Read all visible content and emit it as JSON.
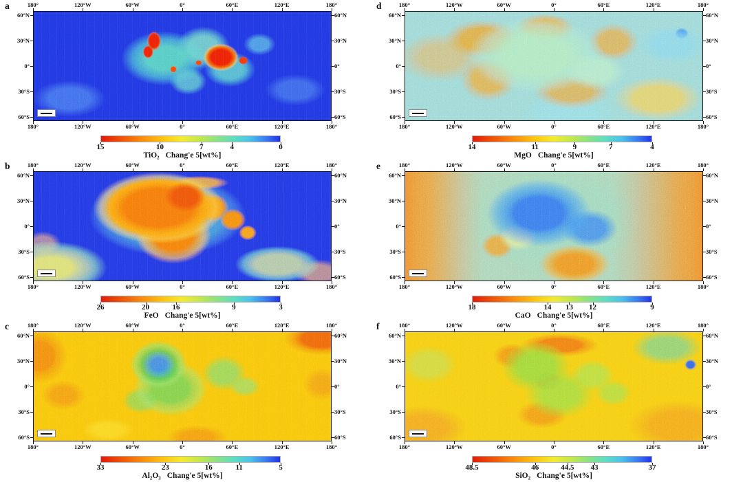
{
  "figure": {
    "axes": {
      "lon_labels": [
        "180°",
        "120°W",
        "60°W",
        "0°",
        "60°E",
        "120°E",
        "180°"
      ],
      "lat_labels": [
        "60°N",
        "30°N",
        "0°",
        "30°S",
        "60°S"
      ]
    },
    "colorbar_colors": [
      "#e21a0a",
      "#ef5207",
      "#fa8d0e",
      "#fec613",
      "#f4ea2f",
      "#c3e84c",
      "#8ae284",
      "#5fdec0",
      "#4cc3ea",
      "#3a7df2",
      "#2433e8"
    ],
    "panels": [
      {
        "letter": "a",
        "map_id": "tio2",
        "colorbar": {
          "formula": "TiO₂",
          "rest": "Chang'e 5[wt%]",
          "ticks": [
            {
              "v": "15",
              "pos": 0.0
            },
            {
              "v": "10",
              "pos": 0.33
            },
            {
              "v": "7",
              "pos": 0.56
            },
            {
              "v": "4",
              "pos": 0.73
            },
            {
              "v": "0",
              "pos": 1.0
            }
          ]
        }
      },
      {
        "letter": "d",
        "map_id": "mgo",
        "colorbar": {
          "formula": "MgO",
          "rest": "Chang'e 5[wt%]",
          "ticks": [
            {
              "v": "14",
              "pos": 0.0
            },
            {
              "v": "11",
              "pos": 0.35
            },
            {
              "v": "9",
              "pos": 0.57
            },
            {
              "v": "7",
              "pos": 0.77
            },
            {
              "v": "4",
              "pos": 1.0
            }
          ]
        }
      },
      {
        "letter": "b",
        "map_id": "feo",
        "colorbar": {
          "formula": "FeO",
          "rest": "Chang'e 5[wt%]",
          "ticks": [
            {
              "v": "26",
              "pos": 0.0
            },
            {
              "v": "20",
              "pos": 0.25
            },
            {
              "v": "16",
              "pos": 0.42
            },
            {
              "v": "9",
              "pos": 0.74
            },
            {
              "v": "3",
              "pos": 1.0
            }
          ]
        }
      },
      {
        "letter": "e",
        "map_id": "cao",
        "colorbar": {
          "formula": "CaO",
          "rest": "Chang'e 5[wt%]",
          "ticks": [
            {
              "v": "18",
              "pos": 0.0
            },
            {
              "v": "14",
              "pos": 0.42
            },
            {
              "v": "13",
              "pos": 0.54
            },
            {
              "v": "12",
              "pos": 0.67
            },
            {
              "v": "9",
              "pos": 1.0
            }
          ]
        }
      },
      {
        "letter": "c",
        "map_id": "al2o3",
        "colorbar": {
          "formula": "Al₂O₃",
          "rest": "Chang'e 5[wt%]",
          "ticks": [
            {
              "v": "33",
              "pos": 0.0
            },
            {
              "v": "23",
              "pos": 0.36
            },
            {
              "v": "16",
              "pos": 0.6
            },
            {
              "v": "11",
              "pos": 0.77
            },
            {
              "v": "5",
              "pos": 1.0
            }
          ]
        }
      },
      {
        "letter": "f",
        "map_id": "sio2",
        "colorbar": {
          "formula": "SiO₂",
          "rest": "Chang'e 5[wt%]",
          "ticks": [
            {
              "v": "48.5",
              "pos": 0.0
            },
            {
              "v": "46",
              "pos": 0.35
            },
            {
              "v": "44.5",
              "pos": 0.53
            },
            {
              "v": "43",
              "pos": 0.68
            },
            {
              "v": "37",
              "pos": 1.0
            }
          ]
        }
      }
    ]
  },
  "chart_data": [
    {
      "type": "heatmap",
      "panel": "a",
      "species": "TiO2",
      "title": "TiO₂ Chang'e 5[wt%]",
      "projection": "equirectangular global lunar map",
      "x_ticks": [
        "180°",
        "120°W",
        "60°W",
        "0°",
        "60°E",
        "120°E",
        "180°"
      ],
      "y_ticks": [
        "60°N",
        "30°N",
        "0°",
        "30°S",
        "60°S"
      ],
      "value_range": [
        0,
        15
      ],
      "colorbar_tick_values": [
        15,
        10,
        7,
        4,
        0
      ],
      "colorbar_tick_positions": [
        0,
        0.33,
        0.56,
        0.73,
        1.0
      ],
      "high_color": "#e21a0a",
      "low_color": "#2433e8",
      "pattern": "Mostly low TiO2 (deep blue) highlands; moderate teal-green values over nearside maria; highest TiO2 (red) patches in Oceanus Procellarum (~60°W, 20-30°N) and Mare Tranquillitatis (~30°E, 0-15°N)."
    },
    {
      "type": "heatmap",
      "panel": "b",
      "species": "FeO",
      "title": "FeO Chang'e 5[wt%]",
      "projection": "equirectangular global lunar map",
      "x_ticks": [
        "180°",
        "120°W",
        "60°W",
        "0°",
        "60°E",
        "120°E",
        "180°"
      ],
      "y_ticks": [
        "60°N",
        "30°N",
        "0°",
        "30°S",
        "60°S"
      ],
      "value_range": [
        3,
        26
      ],
      "colorbar_tick_values": [
        26,
        20,
        16,
        9,
        3
      ],
      "colorbar_tick_positions": [
        0,
        0.25,
        0.42,
        0.74,
        1.0
      ],
      "high_color": "#e21a0a",
      "low_color": "#2433e8",
      "pattern": "High FeO (orange-red) over nearside maria (Procellarum, Imbrium, Serenitatis, Tranquillitatis, Crisium); low FeO (blue) feldspathic highlands; elevated yellow-green values in South Pole-Aitken region (bottom-left and bottom-right)."
    },
    {
      "type": "heatmap",
      "panel": "c",
      "species": "Al2O3",
      "title": "Al₂O₃ Chang'e 5[wt%]",
      "projection": "equirectangular global lunar map",
      "x_ticks": [
        "180°",
        "120°W",
        "60°W",
        "0°",
        "60°E",
        "120°E",
        "180°"
      ],
      "y_ticks": [
        "60°N",
        "30°N",
        "0°",
        "30°S",
        "60°S"
      ],
      "value_range": [
        5,
        33
      ],
      "colorbar_tick_values": [
        33,
        23,
        16,
        11,
        5
      ],
      "colorbar_tick_positions": [
        0,
        0.36,
        0.6,
        0.77,
        1.0
      ],
      "high_color": "#e21a0a",
      "low_color": "#2433e8",
      "pattern": "High Al2O3 (orange-yellow) highlands with reddish patches near crater rays and basin rims; low Al2O3 (green to blue) over nearside maria, lowest (blue) in Mare Imbrium/Procellarum."
    },
    {
      "type": "heatmap",
      "panel": "d",
      "species": "MgO",
      "title": "MgO Chang'e 5[wt%]",
      "projection": "equirectangular global lunar map",
      "x_ticks": [
        "180°",
        "120°W",
        "60°W",
        "0°",
        "60°E",
        "120°E",
        "180°"
      ],
      "y_ticks": [
        "60°N",
        "30°N",
        "0°",
        "30°S",
        "60°S"
      ],
      "value_range": [
        4,
        14
      ],
      "colorbar_tick_values": [
        14,
        11,
        9,
        7,
        4
      ],
      "colorbar_tick_positions": [
        0,
        0.35,
        0.57,
        0.77,
        1.0
      ],
      "high_color": "#e21a0a",
      "low_color": "#2433e8",
      "pattern": "Intermediate MgO (pale green) across nearside maria, ringed by high-MgO (orange) mottling; lower MgO (cyan-blue) farside highlands with orange speckle; yellow patches in southern farside."
    },
    {
      "type": "heatmap",
      "panel": "e",
      "species": "CaO",
      "title": "CaO Chang'e 5[wt%]",
      "projection": "equirectangular global lunar map",
      "x_ticks": [
        "180°",
        "120°W",
        "60°W",
        "0°",
        "60°E",
        "120°E",
        "180°"
      ],
      "y_ticks": [
        "60°N",
        "30°N",
        "0°",
        "30°S",
        "60°S"
      ],
      "value_range": [
        9,
        18
      ],
      "colorbar_tick_values": [
        18,
        14,
        13,
        12,
        9
      ],
      "colorbar_tick_positions": [
        0,
        0.42,
        0.54,
        0.67,
        1.0
      ],
      "high_color": "#e21a0a",
      "low_color": "#2433e8",
      "pattern": "High CaO (orange-red) on farside east and west edges; intermediate (green-cyan) mid-longitudes; low CaO (blue) over nearside maria; orange region around Tycho (~10°W, 45°S)."
    },
    {
      "type": "heatmap",
      "panel": "f",
      "species": "SiO2",
      "title": "SiO₂ Chang'e 5[wt%]",
      "projection": "equirectangular global lunar map",
      "x_ticks": [
        "180°",
        "120°W",
        "60°W",
        "0°",
        "60°E",
        "120°E",
        "180°"
      ],
      "y_ticks": [
        "60°N",
        "30°N",
        "0°",
        "30°S",
        "60°S"
      ],
      "value_range": [
        37,
        48.5
      ],
      "colorbar_tick_values": [
        48.5,
        46,
        44.5,
        43,
        37
      ],
      "colorbar_tick_positions": [
        0,
        0.35,
        0.53,
        0.68,
        1.0
      ],
      "high_color": "#e21a0a",
      "low_color": "#2433e8",
      "pattern": "Yellow-orange (high SiO2) highlands; green (lower SiO2) nearside maria; orange-red rims bordering maria; green-teal patches in northern farside (top-right); blue lowest values in small spots."
    }
  ]
}
